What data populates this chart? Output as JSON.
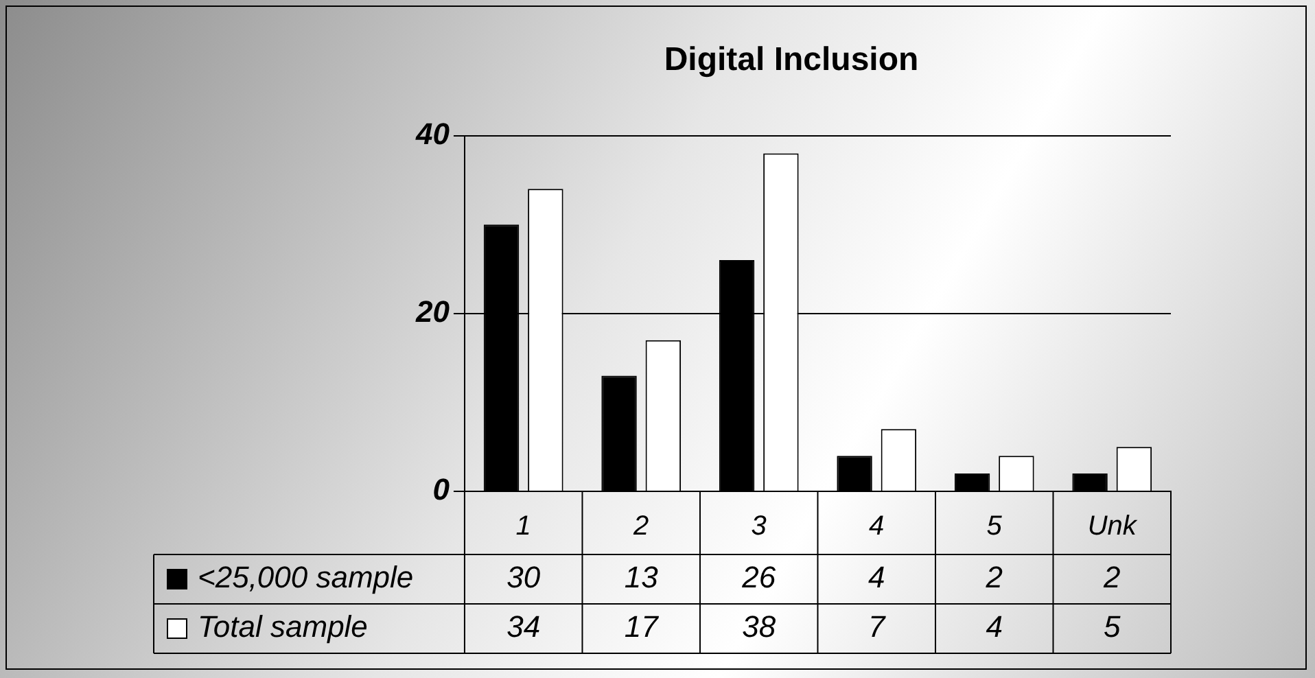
{
  "chart_data": {
    "type": "bar",
    "title": "Digital Inclusion",
    "categories": [
      "1",
      "2",
      "3",
      "4",
      "5",
      "Unk"
    ],
    "series": [
      {
        "name": "<25,000 sample",
        "color": "#000000",
        "values": [
          30,
          13,
          26,
          4,
          2,
          2
        ]
      },
      {
        "name": "Total sample",
        "color": "#ffffff",
        "values": [
          34,
          17,
          38,
          7,
          4,
          5
        ]
      }
    ],
    "ylim": [
      0,
      40
    ],
    "yticks": [
      0,
      20,
      40
    ],
    "grid": "y",
    "legend": "bottom left",
    "data_labels": true
  }
}
